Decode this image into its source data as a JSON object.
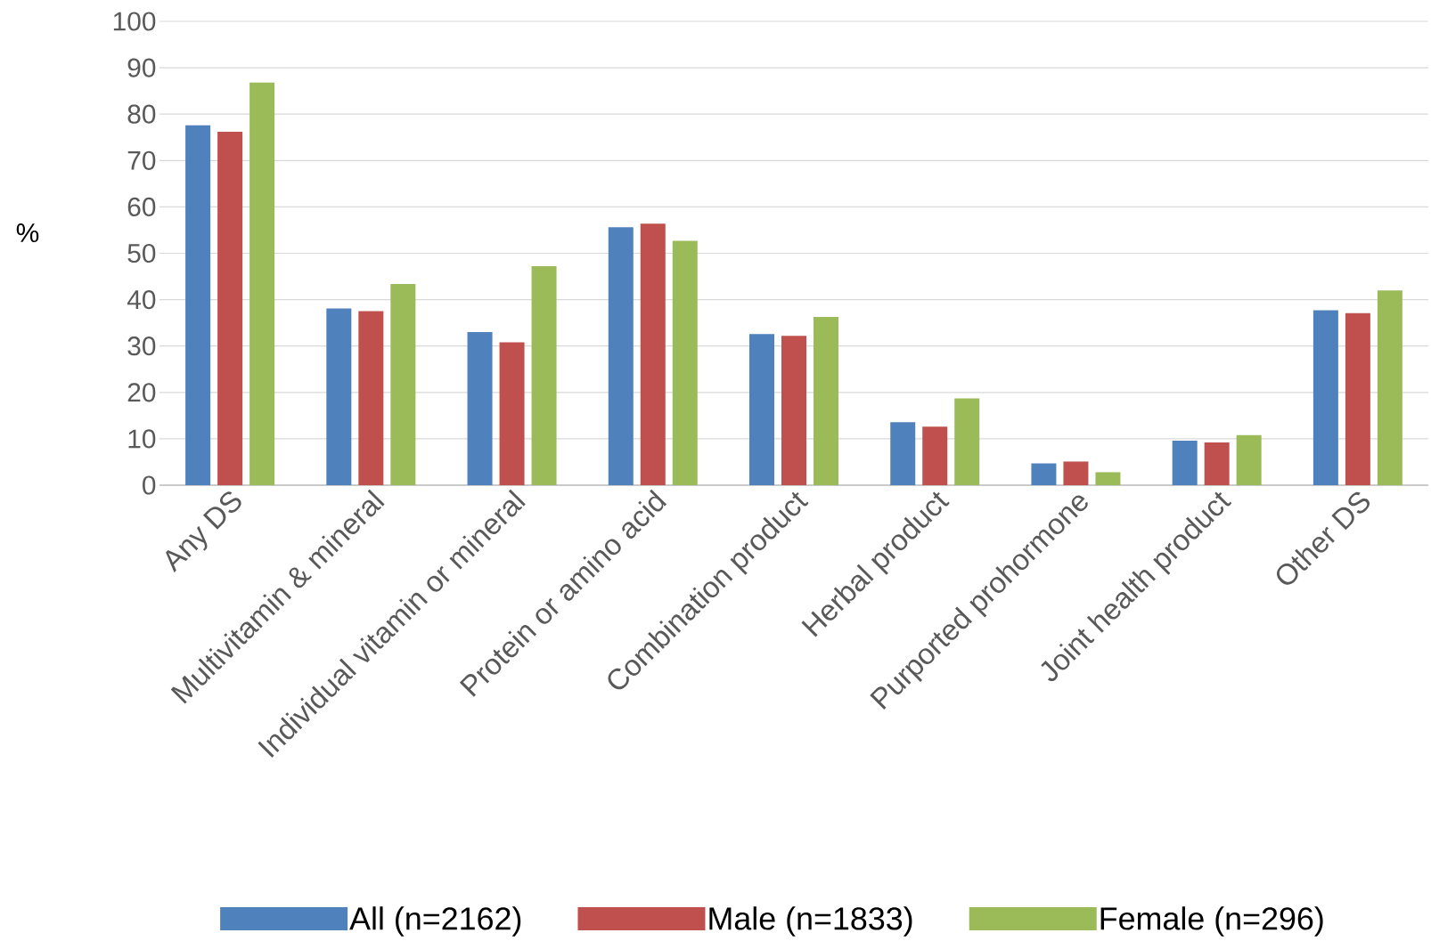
{
  "chart_data": {
    "type": "bar",
    "ylabel": "%",
    "categories": [
      "Any DS",
      "Multivitamin & mineral",
      "Individual vitamin or mineral",
      "Protein or amino acid",
      "Combination product",
      "Herbal product",
      "Purported prohormone",
      "Joint health product",
      "Other DS"
    ],
    "series": [
      {
        "name": "All (n=2162)",
        "color": "#4f81bd",
        "values": [
          77.6,
          38.1,
          33.0,
          55.6,
          32.6,
          13.6,
          4.7,
          9.6,
          37.7
        ]
      },
      {
        "name": "Male (n=1833)",
        "color": "#c0504d",
        "values": [
          76.2,
          37.5,
          30.8,
          56.4,
          32.2,
          12.6,
          5.1,
          9.2,
          37.1
        ]
      },
      {
        "name": "Female (n=296)",
        "color": "#9bbb59",
        "values": [
          86.8,
          43.4,
          47.2,
          52.7,
          36.3,
          18.7,
          2.8,
          10.8,
          42.0
        ]
      }
    ],
    "ylim": [
      0,
      100
    ],
    "yticks": [
      0,
      10,
      20,
      30,
      40,
      50,
      60,
      70,
      80,
      90,
      100
    ],
    "grid": "y",
    "legend": "bottom"
  }
}
